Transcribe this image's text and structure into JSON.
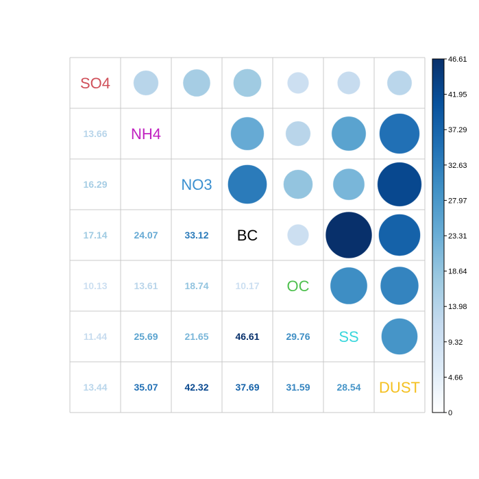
{
  "chart_data": {
    "type": "heatmap",
    "variables": [
      "SO4",
      "NH4",
      "NO3",
      "BC",
      "OC",
      "SS",
      "DUST"
    ],
    "label_colors": [
      "#d0505a",
      "#c020c0",
      "#3a8fd0",
      "#000000",
      "#4ec04e",
      "#38d6dc",
      "#f4c020"
    ],
    "matrix": [
      [
        null,
        13.66,
        16.29,
        17.14,
        10.13,
        11.44,
        13.44
      ],
      [
        13.66,
        null,
        0,
        24.07,
        13.61,
        25.69,
        35.07
      ],
      [
        16.29,
        0,
        null,
        33.12,
        18.74,
        21.65,
        42.32
      ],
      [
        17.14,
        24.07,
        33.12,
        null,
        10.17,
        46.61,
        37.69
      ],
      [
        10.13,
        13.61,
        18.74,
        10.17,
        null,
        29.76,
        31.59
      ],
      [
        11.44,
        25.69,
        21.65,
        46.61,
        29.76,
        null,
        28.54
      ],
      [
        13.44,
        35.07,
        42.32,
        37.69,
        31.59,
        28.54,
        null
      ]
    ],
    "value_labels": [
      [
        "",
        "",
        "",
        "",
        "",
        "",
        ""
      ],
      [
        "13.66",
        "",
        "",
        "",
        "",
        "",
        ""
      ],
      [
        "16.29",
        "",
        "",
        "",
        "",
        "",
        ""
      ],
      [
        "17.14",
        "24.07",
        "33.12",
        "",
        "",
        "",
        ""
      ],
      [
        "10.13",
        "13.61",
        "18.74",
        "10.17",
        "",
        "",
        ""
      ],
      [
        "11.44",
        "25.69",
        "21.65",
        "46.61",
        "29.76",
        "",
        ""
      ],
      [
        "13.44",
        "35.07",
        "42.32",
        "37.69",
        "31.59",
        "28.54",
        ""
      ]
    ],
    "upper_display": "circle",
    "lower_display": "number",
    "diagonal_display": "label",
    "color_range": [
      0,
      46.61
    ],
    "colorbar_ticks": [
      "0",
      "4.66",
      "9.32",
      "13.98",
      "18.64",
      "23.31",
      "27.97",
      "32.63",
      "37.29",
      "41.95",
      "46.61"
    ],
    "color_scale": [
      "#ffffff",
      "#deebf7",
      "#c6dbef",
      "#9ecae1",
      "#6baed6",
      "#4292c6",
      "#2171b5",
      "#08519c",
      "#08306b"
    ]
  }
}
